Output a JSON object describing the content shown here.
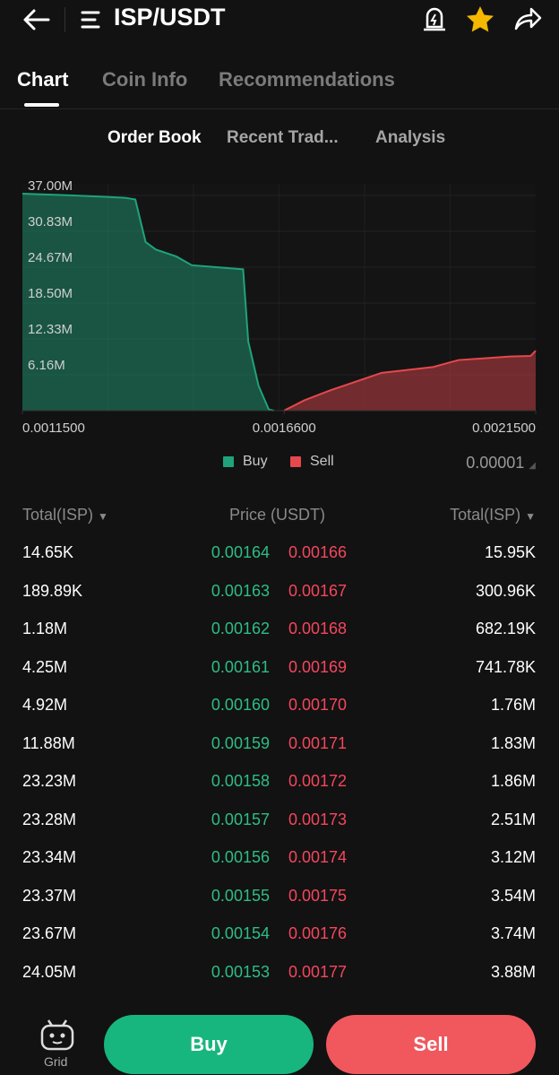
{
  "header": {
    "title": "ISP/USDT"
  },
  "tabs": [
    "Chart",
    "Coin Info",
    "Recommendations"
  ],
  "subtabs": [
    "Order Book",
    "Recent Trad...",
    "Analysis"
  ],
  "chart_data": {
    "type": "area",
    "series": [
      {
        "name": "Buy",
        "color": "#1fa37a",
        "x": [
          0.00115,
          0.00125,
          0.00135,
          0.00137,
          0.00139,
          0.00141,
          0.00145,
          0.00148,
          0.00158,
          0.00159,
          0.00161,
          0.00163,
          0.00164
        ],
        "values": [
          37.3,
          37.0,
          36.6,
          36.3,
          29.0,
          27.7,
          26.5,
          25.0,
          24.3,
          11.9,
          4.3,
          0.19,
          0.01
        ]
      },
      {
        "name": "Sell",
        "color": "#e5484d",
        "x": [
          0.00166,
          0.0017,
          0.00175,
          0.0018,
          0.00185,
          0.0019,
          0.00195,
          0.002,
          0.00205,
          0.0021,
          0.00214,
          0.00215
        ],
        "values": [
          0.02,
          1.8,
          3.5,
          5.0,
          6.5,
          7.0,
          7.5,
          8.7,
          9.0,
          9.3,
          9.4,
          10.3
        ]
      }
    ],
    "xlim": [
      0.00115,
      0.00215
    ],
    "xticks": [
      {
        "value": 0.00115,
        "label": "0.0011500"
      },
      {
        "value": 0.00166,
        "label": "0.0016600"
      },
      {
        "value": 0.00215,
        "label": "0.0021500"
      }
    ],
    "ylim": [
      0,
      39
    ],
    "yticks": [
      {
        "value": 6.16,
        "label": "6.16M"
      },
      {
        "value": 12.33,
        "label": "12.33M"
      },
      {
        "value": 18.5,
        "label": "18.50M"
      },
      {
        "value": 24.67,
        "label": "24.67M"
      },
      {
        "value": 30.83,
        "label": "30.83M"
      },
      {
        "value": 37,
        "label": "37.00M"
      }
    ]
  },
  "precision": "0.00001",
  "order_book": {
    "headers": [
      "Total(ISP)",
      "Price (USDT)",
      "Total(ISP)"
    ],
    "rows": [
      [
        "14.65K",
        "0.00164",
        "0.00166",
        "15.95K"
      ],
      [
        "189.89K",
        "0.00163",
        "0.00167",
        "300.96K"
      ],
      [
        "1.18M",
        "0.00162",
        "0.00168",
        "682.19K"
      ],
      [
        "4.25M",
        "0.00161",
        "0.00169",
        "741.78K"
      ],
      [
        "4.92M",
        "0.00160",
        "0.00170",
        "1.76M"
      ],
      [
        "11.88M",
        "0.00159",
        "0.00171",
        "1.83M"
      ],
      [
        "23.23M",
        "0.00158",
        "0.00172",
        "1.86M"
      ],
      [
        "23.28M",
        "0.00157",
        "0.00173",
        "2.51M"
      ],
      [
        "23.34M",
        "0.00156",
        "0.00174",
        "3.12M"
      ],
      [
        "23.37M",
        "0.00155",
        "0.00175",
        "3.54M"
      ],
      [
        "23.67M",
        "0.00154",
        "0.00176",
        "3.74M"
      ],
      [
        "24.05M",
        "0.00153",
        "0.00177",
        "3.88M"
      ]
    ]
  },
  "footer": {
    "grid": "Grid",
    "buy": "Buy",
    "sell": "Sell"
  }
}
